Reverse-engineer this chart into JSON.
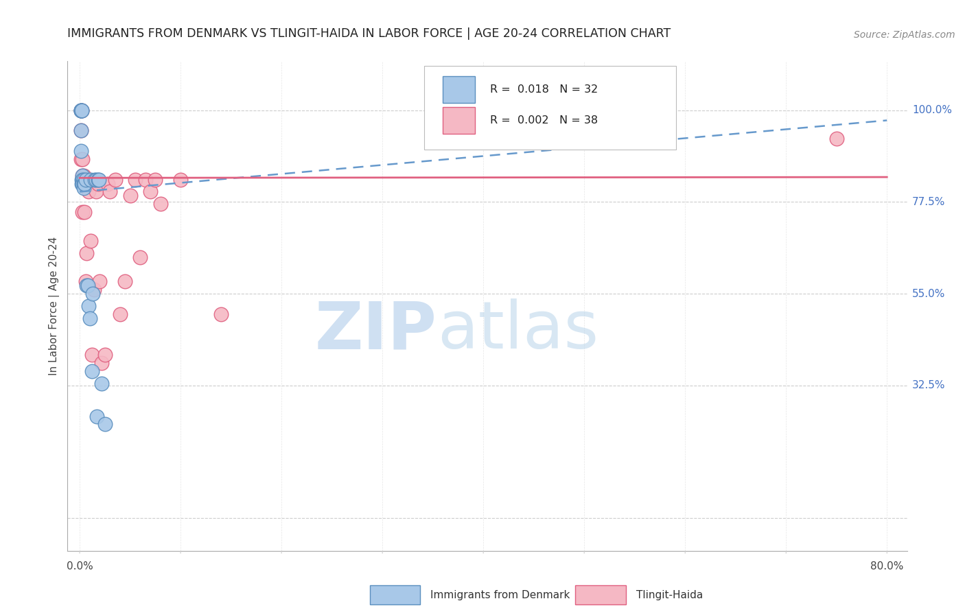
{
  "title": "IMMIGRANTS FROM DENMARK VS TLINGIT-HAIDA IN LABOR FORCE | AGE 20-24 CORRELATION CHART",
  "source": "Source: ZipAtlas.com",
  "ylabel": "In Labor Force | Age 20-24",
  "denmark_scatter_x": [
    0.001,
    0.001,
    0.001,
    0.001,
    0.001,
    0.002,
    0.002,
    0.002,
    0.002,
    0.003,
    0.003,
    0.003,
    0.004,
    0.004,
    0.004,
    0.005,
    0.005,
    0.006,
    0.007,
    0.008,
    0.009,
    0.01,
    0.011,
    0.012,
    0.013,
    0.015,
    0.016,
    0.017,
    0.018,
    0.019,
    0.022,
    0.025
  ],
  "denmark_scatter_y": [
    1.0,
    1.0,
    1.0,
    0.95,
    0.9,
    1.0,
    1.0,
    0.83,
    0.82,
    0.84,
    0.83,
    0.82,
    0.83,
    0.82,
    0.81,
    0.82,
    0.82,
    0.83,
    0.57,
    0.57,
    0.52,
    0.49,
    0.83,
    0.36,
    0.55,
    0.83,
    0.83,
    0.25,
    0.83,
    0.83,
    0.33,
    0.23
  ],
  "tlingit_scatter_x": [
    0.001,
    0.001,
    0.001,
    0.002,
    0.003,
    0.003,
    0.003,
    0.004,
    0.005,
    0.005,
    0.006,
    0.007,
    0.008,
    0.009,
    0.01,
    0.011,
    0.012,
    0.014,
    0.016,
    0.018,
    0.02,
    0.022,
    0.025,
    0.028,
    0.03,
    0.035,
    0.04,
    0.045,
    0.05,
    0.055,
    0.06,
    0.065,
    0.07,
    0.075,
    0.08,
    0.1,
    0.14,
    0.75
  ],
  "tlingit_scatter_y": [
    1.0,
    0.95,
    0.88,
    1.0,
    0.88,
    0.84,
    0.75,
    0.84,
    0.83,
    0.75,
    0.58,
    0.65,
    0.83,
    0.8,
    0.82,
    0.68,
    0.4,
    0.56,
    0.8,
    0.82,
    0.58,
    0.38,
    0.4,
    0.82,
    0.8,
    0.83,
    0.5,
    0.58,
    0.79,
    0.83,
    0.64,
    0.83,
    0.8,
    0.83,
    0.77,
    0.83,
    0.5,
    0.93
  ],
  "denmark_color": "#a8c8e8",
  "denmark_edge_color": "#5b8fbf",
  "tlingit_color": "#f5b8c4",
  "tlingit_edge_color": "#e06080",
  "denmark_trend_color": "#6699cc",
  "tlingit_trend_color": "#e06080",
  "dk_trend_x0": 0.0,
  "dk_trend_x1": 0.8,
  "dk_trend_y0": 0.8,
  "dk_trend_y1": 0.975,
  "tl_trend_x0": 0.0,
  "tl_trend_x1": 0.8,
  "tl_trend_y0": 0.834,
  "tl_trend_y1": 0.836,
  "grid_color": "#cccccc",
  "background_color": "#ffffff",
  "title_color": "#222222",
  "axis_label_color": "#444444",
  "right_tick_color": "#4472c4",
  "yticks": [
    0.0,
    0.325,
    0.55,
    0.775,
    1.0
  ],
  "ytick_labels": [
    "",
    "32.5%",
    "55.0%",
    "77.5%",
    "100.0%"
  ],
  "xlim": [
    -0.012,
    0.82
  ],
  "ylim": [
    -0.08,
    1.12
  ],
  "legend_r1": "R =  0.018   N = 32",
  "legend_r2": "R =  0.002   N = 38",
  "bottom_label1": "Immigrants from Denmark",
  "bottom_label2": "Tlingit-Haida",
  "xtick_positions": [
    0.0,
    0.1,
    0.2,
    0.3,
    0.4,
    0.5,
    0.6,
    0.7,
    0.8
  ]
}
